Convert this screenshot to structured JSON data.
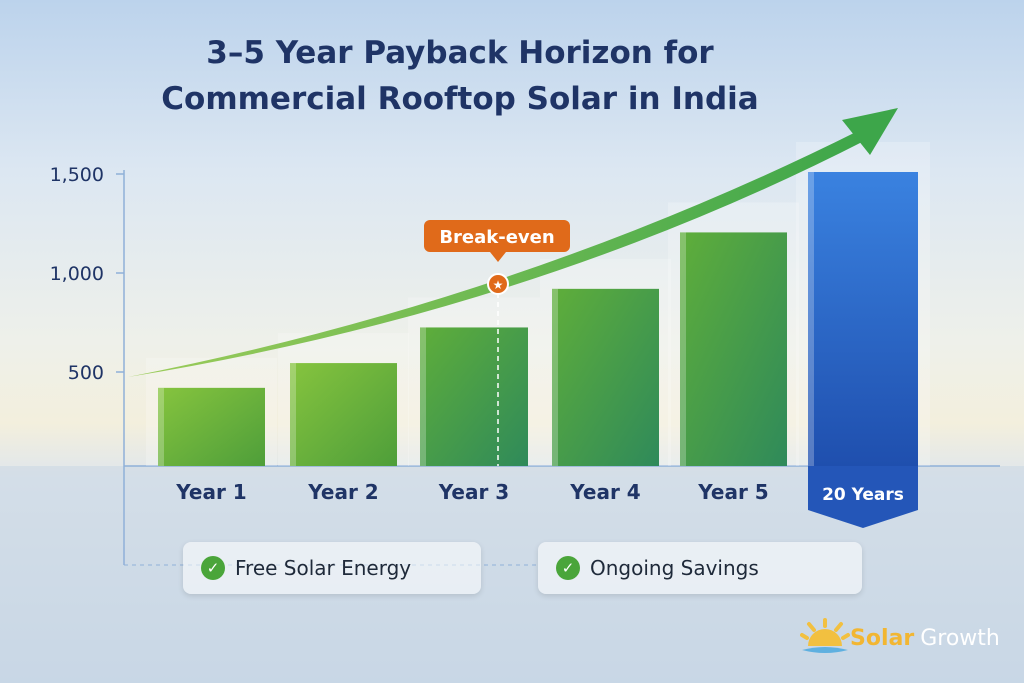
{
  "title_line1": "3–5 Year Payback Horizon for",
  "title_line2": "Commercial Rooftop Solar in India",
  "chart_data": {
    "type": "bar",
    "title": "3–5 Year Payback Horizon for Commercial Rooftop Solar in India",
    "categories": [
      "Year 1",
      "Year 2",
      "Year 3",
      "Year 4",
      "Year 5",
      "20 Years"
    ],
    "values": [
      420,
      545,
      725,
      920,
      1205,
      1500
    ],
    "yticks": [
      "500",
      "1,000",
      "1,500"
    ],
    "ytick_values": [
      500,
      1000,
      1500
    ],
    "ylim": [
      0,
      1500
    ],
    "xlabel": "",
    "ylabel": "",
    "annotation": {
      "label": "Break-even",
      "category": "Year 3",
      "value": 950
    },
    "trend_arrow": "rising green curve",
    "colors": {
      "green_start": "#7cc242",
      "green_end": "#2e8b6a",
      "highlight": "#2456b8",
      "annotation": "#e06a1a"
    }
  },
  "legend": [
    "Free Solar Energy",
    "Ongoing Savings"
  ],
  "logo": {
    "part1": "Solar",
    "part2": "Growth"
  }
}
